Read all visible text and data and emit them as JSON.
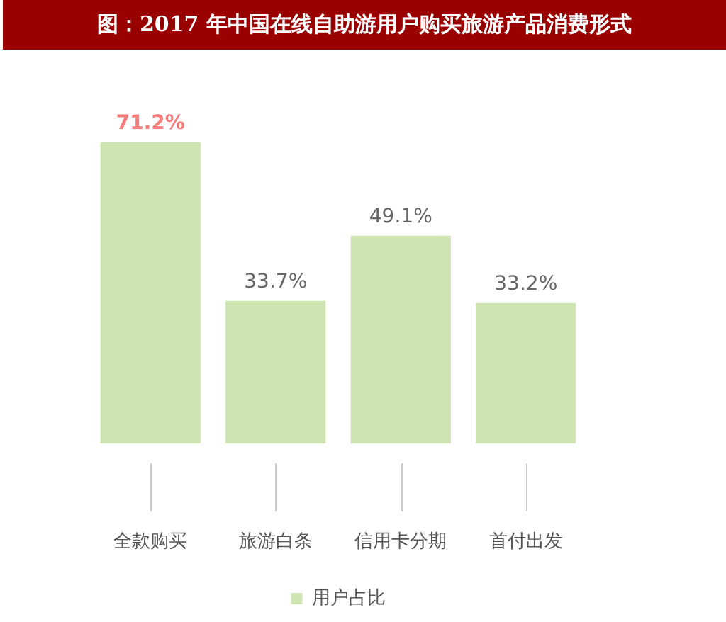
{
  "chart_data": {
    "type": "bar",
    "title": "图：2017 年中国在线自助游用户购买旅游产品消费形式",
    "categories": [
      "全款购买",
      "旅游白条",
      "信用卡分期",
      "首付出发"
    ],
    "series": [
      {
        "name": "用户占比",
        "color": "#cfe5b1",
        "values": [
          71.2,
          33.7,
          49.1,
          33.2
        ],
        "value_labels": [
          "71.2%",
          "33.7%",
          "49.1%",
          "33.2%"
        ]
      }
    ],
    "legend": "bottom",
    "grid": false,
    "tick_labels": "x"
  }
}
